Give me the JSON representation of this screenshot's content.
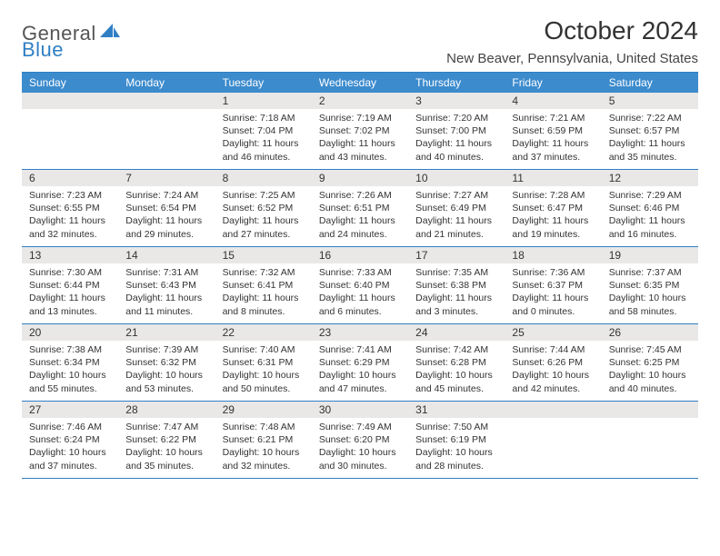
{
  "brand": {
    "part1": "General",
    "part2": "Blue",
    "color1": "#555555",
    "color2": "#2f7fc4"
  },
  "title": "October 2024",
  "location": "New Beaver, Pennsylvania, United States",
  "colors": {
    "headerBg": "#3c8bcd",
    "border": "#2f7fc4",
    "dayBar": "#e9e8e7",
    "text": "#333333"
  },
  "weekdays": [
    "Sunday",
    "Monday",
    "Tuesday",
    "Wednesday",
    "Thursday",
    "Friday",
    "Saturday"
  ],
  "weeks": [
    [
      null,
      null,
      {
        "n": "1",
        "sr": "7:18 AM",
        "ss": "7:04 PM",
        "dl": "11 hours and 46 minutes."
      },
      {
        "n": "2",
        "sr": "7:19 AM",
        "ss": "7:02 PM",
        "dl": "11 hours and 43 minutes."
      },
      {
        "n": "3",
        "sr": "7:20 AM",
        "ss": "7:00 PM",
        "dl": "11 hours and 40 minutes."
      },
      {
        "n": "4",
        "sr": "7:21 AM",
        "ss": "6:59 PM",
        "dl": "11 hours and 37 minutes."
      },
      {
        "n": "5",
        "sr": "7:22 AM",
        "ss": "6:57 PM",
        "dl": "11 hours and 35 minutes."
      }
    ],
    [
      {
        "n": "6",
        "sr": "7:23 AM",
        "ss": "6:55 PM",
        "dl": "11 hours and 32 minutes."
      },
      {
        "n": "7",
        "sr": "7:24 AM",
        "ss": "6:54 PM",
        "dl": "11 hours and 29 minutes."
      },
      {
        "n": "8",
        "sr": "7:25 AM",
        "ss": "6:52 PM",
        "dl": "11 hours and 27 minutes."
      },
      {
        "n": "9",
        "sr": "7:26 AM",
        "ss": "6:51 PM",
        "dl": "11 hours and 24 minutes."
      },
      {
        "n": "10",
        "sr": "7:27 AM",
        "ss": "6:49 PM",
        "dl": "11 hours and 21 minutes."
      },
      {
        "n": "11",
        "sr": "7:28 AM",
        "ss": "6:47 PM",
        "dl": "11 hours and 19 minutes."
      },
      {
        "n": "12",
        "sr": "7:29 AM",
        "ss": "6:46 PM",
        "dl": "11 hours and 16 minutes."
      }
    ],
    [
      {
        "n": "13",
        "sr": "7:30 AM",
        "ss": "6:44 PM",
        "dl": "11 hours and 13 minutes."
      },
      {
        "n": "14",
        "sr": "7:31 AM",
        "ss": "6:43 PM",
        "dl": "11 hours and 11 minutes."
      },
      {
        "n": "15",
        "sr": "7:32 AM",
        "ss": "6:41 PM",
        "dl": "11 hours and 8 minutes."
      },
      {
        "n": "16",
        "sr": "7:33 AM",
        "ss": "6:40 PM",
        "dl": "11 hours and 6 minutes."
      },
      {
        "n": "17",
        "sr": "7:35 AM",
        "ss": "6:38 PM",
        "dl": "11 hours and 3 minutes."
      },
      {
        "n": "18",
        "sr": "7:36 AM",
        "ss": "6:37 PM",
        "dl": "11 hours and 0 minutes."
      },
      {
        "n": "19",
        "sr": "7:37 AM",
        "ss": "6:35 PM",
        "dl": "10 hours and 58 minutes."
      }
    ],
    [
      {
        "n": "20",
        "sr": "7:38 AM",
        "ss": "6:34 PM",
        "dl": "10 hours and 55 minutes."
      },
      {
        "n": "21",
        "sr": "7:39 AM",
        "ss": "6:32 PM",
        "dl": "10 hours and 53 minutes."
      },
      {
        "n": "22",
        "sr": "7:40 AM",
        "ss": "6:31 PM",
        "dl": "10 hours and 50 minutes."
      },
      {
        "n": "23",
        "sr": "7:41 AM",
        "ss": "6:29 PM",
        "dl": "10 hours and 47 minutes."
      },
      {
        "n": "24",
        "sr": "7:42 AM",
        "ss": "6:28 PM",
        "dl": "10 hours and 45 minutes."
      },
      {
        "n": "25",
        "sr": "7:44 AM",
        "ss": "6:26 PM",
        "dl": "10 hours and 42 minutes."
      },
      {
        "n": "26",
        "sr": "7:45 AM",
        "ss": "6:25 PM",
        "dl": "10 hours and 40 minutes."
      }
    ],
    [
      {
        "n": "27",
        "sr": "7:46 AM",
        "ss": "6:24 PM",
        "dl": "10 hours and 37 minutes."
      },
      {
        "n": "28",
        "sr": "7:47 AM",
        "ss": "6:22 PM",
        "dl": "10 hours and 35 minutes."
      },
      {
        "n": "29",
        "sr": "7:48 AM",
        "ss": "6:21 PM",
        "dl": "10 hours and 32 minutes."
      },
      {
        "n": "30",
        "sr": "7:49 AM",
        "ss": "6:20 PM",
        "dl": "10 hours and 30 minutes."
      },
      {
        "n": "31",
        "sr": "7:50 AM",
        "ss": "6:19 PM",
        "dl": "10 hours and 28 minutes."
      },
      null,
      null
    ]
  ]
}
